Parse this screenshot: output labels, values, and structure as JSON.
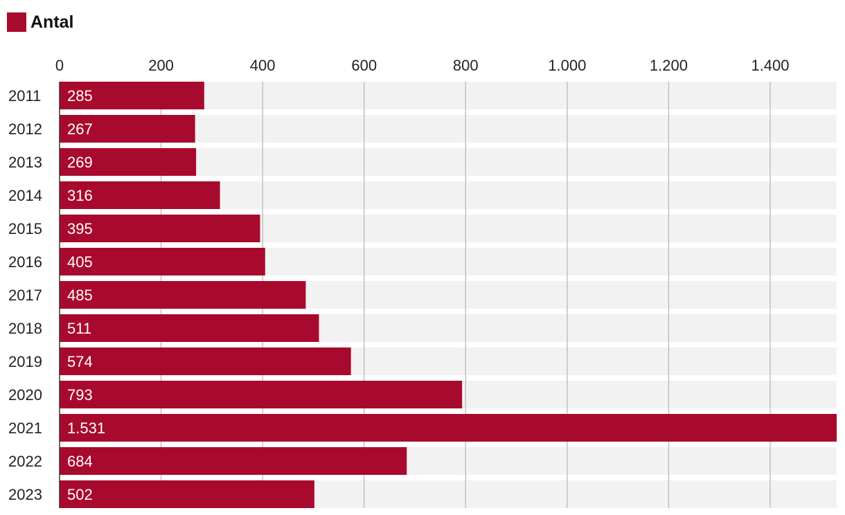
{
  "chart_data": {
    "type": "bar",
    "orientation": "horizontal",
    "legend": [
      {
        "label": "Antal",
        "color": "#a80a2d"
      }
    ],
    "categories": [
      "2011",
      "2012",
      "2013",
      "2014",
      "2015",
      "2016",
      "2017",
      "2018",
      "2019",
      "2020",
      "2021",
      "2022",
      "2023"
    ],
    "values": [
      285,
      267,
      269,
      316,
      395,
      405,
      485,
      511,
      574,
      793,
      1531,
      684,
      502
    ],
    "value_labels": [
      "285",
      "267",
      "269",
      "316",
      "395",
      "405",
      "485",
      "511",
      "574",
      "793",
      "1.531",
      "684",
      "502"
    ],
    "x_ticks": [
      0,
      200,
      400,
      600,
      800,
      1000,
      1200,
      1400
    ],
    "x_tick_labels": [
      "0",
      "200",
      "400",
      "600",
      "800",
      "1.000",
      "1.200",
      "1.400"
    ],
    "xlim": [
      0,
      1531
    ],
    "grid": true,
    "title": "",
    "xlabel": "",
    "ylabel": ""
  },
  "colors": {
    "bar": "#a80a2d",
    "band": "#f2f2f2",
    "grid": "#b8b8b8",
    "axis": "#333333"
  }
}
